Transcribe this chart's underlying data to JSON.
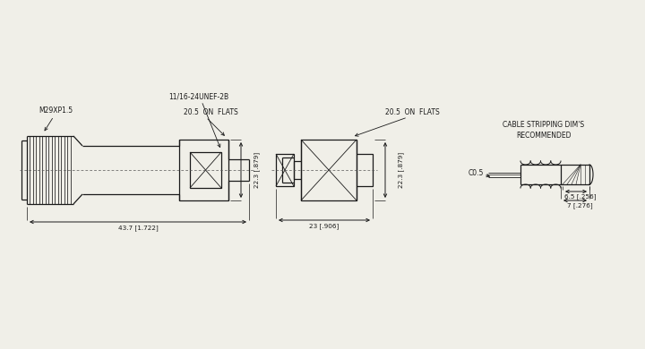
{
  "bg_color": "#f0efe8",
  "line_color": "#1a1a1a",
  "text_color": "#1a1a1a",
  "annotations": {
    "m29": "M29XP1.5",
    "thread": "11/16-24UNEF-2B",
    "flats1": "20.5  ON  FLATS",
    "flats2": "20.5  ON  FLATS",
    "dim_437": "43.7 [1.722]",
    "dim_23": "23 [.906]",
    "dim_223a": "22.3 [.879]",
    "dim_223b": "22.3 [.879]",
    "dim_7": "7 [.276]",
    "dim_65": "6.5 [.256]",
    "c05": "C0.5",
    "rec": "RECOMMENDED",
    "cable": "CABLE STRIPPING DIM'S"
  }
}
